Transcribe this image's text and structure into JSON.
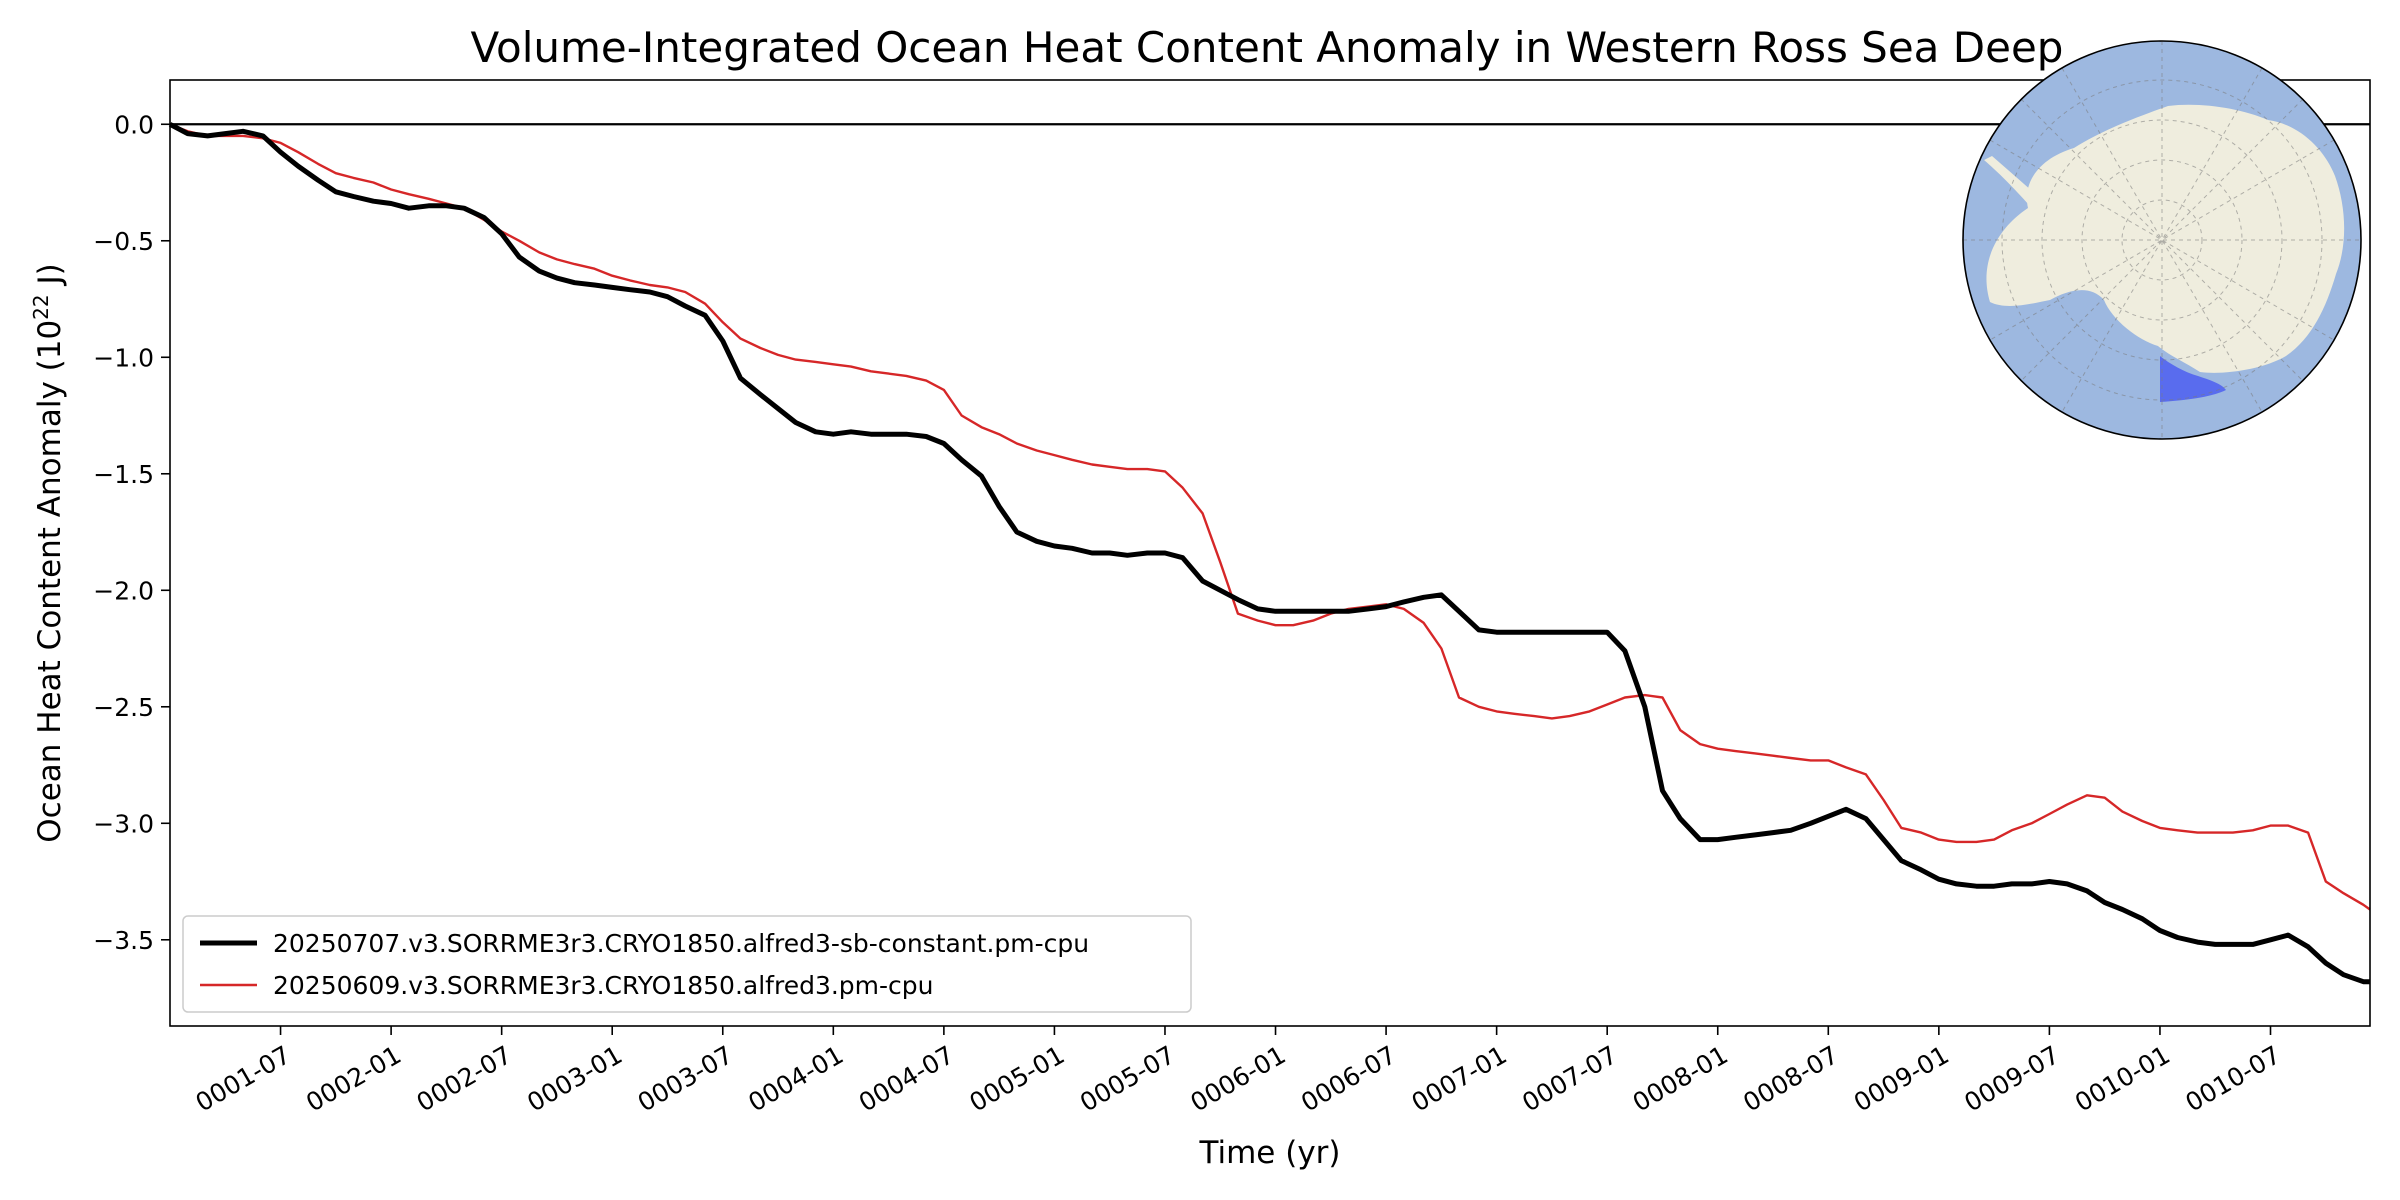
{
  "chart_data": {
    "type": "line",
    "title": "Volume-Integrated Ocean Heat Content Anomaly in Western Ross Sea Deep",
    "xlabel": "Time (yr)",
    "ylabel": "Ocean Heat Content Anomaly (10²² J)",
    "ylabel_main": "Ocean Heat Content Anomaly (10",
    "ylabel_exp": "22",
    "ylabel_tail": " J)",
    "x_unit": "year",
    "xlim": [
      1.0,
      10.95
    ],
    "ylim": [
      -3.87,
      0.19
    ],
    "x_ticks": [
      {
        "label": "0001-07",
        "value": 1.5
      },
      {
        "label": "0002-01",
        "value": 2.0
      },
      {
        "label": "0002-07",
        "value": 2.5
      },
      {
        "label": "0003-01",
        "value": 3.0
      },
      {
        "label": "0003-07",
        "value": 3.5
      },
      {
        "label": "0004-01",
        "value": 4.0
      },
      {
        "label": "0004-07",
        "value": 4.5
      },
      {
        "label": "0005-01",
        "value": 5.0
      },
      {
        "label": "0005-07",
        "value": 5.5
      },
      {
        "label": "0006-01",
        "value": 6.0
      },
      {
        "label": "0006-07",
        "value": 6.5
      },
      {
        "label": "0007-01",
        "value": 7.0
      },
      {
        "label": "0007-07",
        "value": 7.5
      },
      {
        "label": "0008-01",
        "value": 8.0
      },
      {
        "label": "0008-07",
        "value": 8.5
      },
      {
        "label": "0009-01",
        "value": 9.0
      },
      {
        "label": "0009-07",
        "value": 9.5
      },
      {
        "label": "0010-01",
        "value": 10.0
      },
      {
        "label": "0010-07",
        "value": 10.5
      }
    ],
    "y_ticks": [
      {
        "label": "0.0",
        "value": 0.0
      },
      {
        "label": "−0.5",
        "value": -0.5
      },
      {
        "label": "−1.0",
        "value": -1.0
      },
      {
        "label": "−1.5",
        "value": -1.5
      },
      {
        "label": "−2.0",
        "value": -2.0
      },
      {
        "label": "−2.5",
        "value": -2.5
      },
      {
        "label": "−3.0",
        "value": -3.0
      },
      {
        "label": "−3.5",
        "value": -3.5
      }
    ],
    "zero_line": 0.0,
    "grid": false,
    "legend_position": "lower-left",
    "series": [
      {
        "name": "20250707.v3.SORRME3r3.CRYO1850.alfred3-sb-constant.pm-cpu",
        "color": "#000000",
        "style": "thick",
        "points": [
          [
            1.0,
            0.0
          ],
          [
            1.08,
            -0.04
          ],
          [
            1.17,
            -0.05
          ],
          [
            1.25,
            -0.04
          ],
          [
            1.33,
            -0.03
          ],
          [
            1.42,
            -0.05
          ],
          [
            1.5,
            -0.12
          ],
          [
            1.58,
            -0.18
          ],
          [
            1.67,
            -0.24
          ],
          [
            1.75,
            -0.29
          ],
          [
            1.83,
            -0.31
          ],
          [
            1.92,
            -0.33
          ],
          [
            2.0,
            -0.34
          ],
          [
            2.08,
            -0.36
          ],
          [
            2.17,
            -0.35
          ],
          [
            2.25,
            -0.35
          ],
          [
            2.33,
            -0.36
          ],
          [
            2.42,
            -0.4
          ],
          [
            2.5,
            -0.47
          ],
          [
            2.58,
            -0.57
          ],
          [
            2.67,
            -0.63
          ],
          [
            2.75,
            -0.66
          ],
          [
            2.83,
            -0.68
          ],
          [
            2.92,
            -0.69
          ],
          [
            3.0,
            -0.7
          ],
          [
            3.08,
            -0.71
          ],
          [
            3.17,
            -0.72
          ],
          [
            3.25,
            -0.74
          ],
          [
            3.33,
            -0.78
          ],
          [
            3.42,
            -0.82
          ],
          [
            3.5,
            -0.93
          ],
          [
            3.58,
            -1.09
          ],
          [
            3.67,
            -1.16
          ],
          [
            3.75,
            -1.22
          ],
          [
            3.83,
            -1.28
          ],
          [
            3.92,
            -1.32
          ],
          [
            4.0,
            -1.33
          ],
          [
            4.08,
            -1.32
          ],
          [
            4.17,
            -1.33
          ],
          [
            4.25,
            -1.33
          ],
          [
            4.33,
            -1.33
          ],
          [
            4.42,
            -1.34
          ],
          [
            4.5,
            -1.37
          ],
          [
            4.58,
            -1.44
          ],
          [
            4.67,
            -1.51
          ],
          [
            4.75,
            -1.64
          ],
          [
            4.83,
            -1.75
          ],
          [
            4.92,
            -1.79
          ],
          [
            5.0,
            -1.81
          ],
          [
            5.08,
            -1.82
          ],
          [
            5.17,
            -1.84
          ],
          [
            5.25,
            -1.84
          ],
          [
            5.33,
            -1.85
          ],
          [
            5.42,
            -1.84
          ],
          [
            5.5,
            -1.84
          ],
          [
            5.58,
            -1.86
          ],
          [
            5.67,
            -1.96
          ],
          [
            5.75,
            -2.0
          ],
          [
            5.83,
            -2.04
          ],
          [
            5.92,
            -2.08
          ],
          [
            6.0,
            -2.09
          ],
          [
            6.08,
            -2.09
          ],
          [
            6.17,
            -2.09
          ],
          [
            6.25,
            -2.09
          ],
          [
            6.33,
            -2.09
          ],
          [
            6.42,
            -2.08
          ],
          [
            6.5,
            -2.07
          ],
          [
            6.58,
            -2.05
          ],
          [
            6.67,
            -2.03
          ],
          [
            6.75,
            -2.02
          ],
          [
            6.83,
            -2.09
          ],
          [
            6.92,
            -2.17
          ],
          [
            7.0,
            -2.18
          ],
          [
            7.08,
            -2.18
          ],
          [
            7.17,
            -2.18
          ],
          [
            7.25,
            -2.18
          ],
          [
            7.33,
            -2.18
          ],
          [
            7.42,
            -2.18
          ],
          [
            7.5,
            -2.18
          ],
          [
            7.58,
            -2.26
          ],
          [
            7.67,
            -2.5
          ],
          [
            7.75,
            -2.86
          ],
          [
            7.83,
            -2.98
          ],
          [
            7.92,
            -3.07
          ],
          [
            8.0,
            -3.07
          ],
          [
            8.08,
            -3.06
          ],
          [
            8.17,
            -3.05
          ],
          [
            8.25,
            -3.04
          ],
          [
            8.33,
            -3.03
          ],
          [
            8.42,
            -3.0
          ],
          [
            8.5,
            -2.97
          ],
          [
            8.58,
            -2.94
          ],
          [
            8.67,
            -2.98
          ],
          [
            8.75,
            -3.07
          ],
          [
            8.83,
            -3.16
          ],
          [
            8.92,
            -3.2
          ],
          [
            9.0,
            -3.24
          ],
          [
            9.08,
            -3.26
          ],
          [
            9.17,
            -3.27
          ],
          [
            9.25,
            -3.27
          ],
          [
            9.33,
            -3.26
          ],
          [
            9.42,
            -3.26
          ],
          [
            9.5,
            -3.25
          ],
          [
            9.58,
            -3.26
          ],
          [
            9.67,
            -3.29
          ],
          [
            9.75,
            -3.34
          ],
          [
            9.83,
            -3.37
          ],
          [
            9.92,
            -3.41
          ],
          [
            10.0,
            -3.46
          ],
          [
            10.08,
            -3.49
          ],
          [
            10.17,
            -3.51
          ],
          [
            10.25,
            -3.52
          ],
          [
            10.33,
            -3.52
          ],
          [
            10.42,
            -3.52
          ],
          [
            10.5,
            -3.5
          ],
          [
            10.58,
            -3.48
          ],
          [
            10.67,
            -3.53
          ],
          [
            10.75,
            -3.6
          ],
          [
            10.83,
            -3.65
          ],
          [
            10.92,
            -3.68
          ],
          [
            10.95,
            -3.68
          ]
        ]
      },
      {
        "name": "20250609.v3.SORRME3r3.CRYO1850.alfred3.pm-cpu",
        "color": "#d62728",
        "style": "thin",
        "points": [
          [
            1.0,
            0.0
          ],
          [
            1.08,
            -0.03
          ],
          [
            1.17,
            -0.05
          ],
          [
            1.25,
            -0.05
          ],
          [
            1.33,
            -0.05
          ],
          [
            1.42,
            -0.06
          ],
          [
            1.5,
            -0.08
          ],
          [
            1.58,
            -0.12
          ],
          [
            1.67,
            -0.17
          ],
          [
            1.75,
            -0.21
          ],
          [
            1.83,
            -0.23
          ],
          [
            1.92,
            -0.25
          ],
          [
            2.0,
            -0.28
          ],
          [
            2.08,
            -0.3
          ],
          [
            2.17,
            -0.32
          ],
          [
            2.25,
            -0.34
          ],
          [
            2.33,
            -0.36
          ],
          [
            2.42,
            -0.41
          ],
          [
            2.5,
            -0.46
          ],
          [
            2.58,
            -0.5
          ],
          [
            2.67,
            -0.55
          ],
          [
            2.75,
            -0.58
          ],
          [
            2.83,
            -0.6
          ],
          [
            2.92,
            -0.62
          ],
          [
            3.0,
            -0.65
          ],
          [
            3.08,
            -0.67
          ],
          [
            3.17,
            -0.69
          ],
          [
            3.25,
            -0.7
          ],
          [
            3.33,
            -0.72
          ],
          [
            3.42,
            -0.77
          ],
          [
            3.5,
            -0.85
          ],
          [
            3.58,
            -0.92
          ],
          [
            3.67,
            -0.96
          ],
          [
            3.75,
            -0.99
          ],
          [
            3.83,
            -1.01
          ],
          [
            3.92,
            -1.02
          ],
          [
            4.0,
            -1.03
          ],
          [
            4.08,
            -1.04
          ],
          [
            4.17,
            -1.06
          ],
          [
            4.25,
            -1.07
          ],
          [
            4.33,
            -1.08
          ],
          [
            4.42,
            -1.1
          ],
          [
            4.5,
            -1.14
          ],
          [
            4.58,
            -1.25
          ],
          [
            4.67,
            -1.3
          ],
          [
            4.75,
            -1.33
          ],
          [
            4.83,
            -1.37
          ],
          [
            4.92,
            -1.4
          ],
          [
            5.0,
            -1.42
          ],
          [
            5.08,
            -1.44
          ],
          [
            5.17,
            -1.46
          ],
          [
            5.25,
            -1.47
          ],
          [
            5.33,
            -1.48
          ],
          [
            5.42,
            -1.48
          ],
          [
            5.5,
            -1.49
          ],
          [
            5.58,
            -1.56
          ],
          [
            5.67,
            -1.67
          ],
          [
            5.75,
            -1.88
          ],
          [
            5.83,
            -2.1
          ],
          [
            5.92,
            -2.13
          ],
          [
            6.0,
            -2.15
          ],
          [
            6.08,
            -2.15
          ],
          [
            6.17,
            -2.13
          ],
          [
            6.25,
            -2.1
          ],
          [
            6.33,
            -2.08
          ],
          [
            6.42,
            -2.07
          ],
          [
            6.5,
            -2.06
          ],
          [
            6.58,
            -2.08
          ],
          [
            6.67,
            -2.14
          ],
          [
            6.75,
            -2.25
          ],
          [
            6.83,
            -2.46
          ],
          [
            6.92,
            -2.5
          ],
          [
            7.0,
            -2.52
          ],
          [
            7.08,
            -2.53
          ],
          [
            7.17,
            -2.54
          ],
          [
            7.25,
            -2.55
          ],
          [
            7.33,
            -2.54
          ],
          [
            7.42,
            -2.52
          ],
          [
            7.5,
            -2.49
          ],
          [
            7.58,
            -2.46
          ],
          [
            7.67,
            -2.45
          ],
          [
            7.75,
            -2.46
          ],
          [
            7.83,
            -2.6
          ],
          [
            7.92,
            -2.66
          ],
          [
            8.0,
            -2.68
          ],
          [
            8.08,
            -2.69
          ],
          [
            8.17,
            -2.7
          ],
          [
            8.25,
            -2.71
          ],
          [
            8.33,
            -2.72
          ],
          [
            8.42,
            -2.73
          ],
          [
            8.5,
            -2.73
          ],
          [
            8.58,
            -2.76
          ],
          [
            8.67,
            -2.79
          ],
          [
            8.75,
            -2.9
          ],
          [
            8.83,
            -3.02
          ],
          [
            8.92,
            -3.04
          ],
          [
            9.0,
            -3.07
          ],
          [
            9.08,
            -3.08
          ],
          [
            9.17,
            -3.08
          ],
          [
            9.25,
            -3.07
          ],
          [
            9.33,
            -3.03
          ],
          [
            9.42,
            -3.0
          ],
          [
            9.5,
            -2.96
          ],
          [
            9.58,
            -2.92
          ],
          [
            9.67,
            -2.88
          ],
          [
            9.75,
            -2.89
          ],
          [
            9.83,
            -2.95
          ],
          [
            9.92,
            -2.99
          ],
          [
            10.0,
            -3.02
          ],
          [
            10.08,
            -3.03
          ],
          [
            10.17,
            -3.04
          ],
          [
            10.25,
            -3.04
          ],
          [
            10.33,
            -3.04
          ],
          [
            10.42,
            -3.03
          ],
          [
            10.5,
            -3.01
          ],
          [
            10.58,
            -3.01
          ],
          [
            10.67,
            -3.04
          ],
          [
            10.75,
            -3.25
          ],
          [
            10.83,
            -3.3
          ],
          [
            10.92,
            -3.35
          ],
          [
            10.95,
            -3.37
          ]
        ]
      }
    ]
  },
  "inset_map": {
    "ocean_color": "#9db8e0",
    "land_color": "#efedde",
    "region_color": "#4a5cf0",
    "graticule": true,
    "projection": "south-polar"
  }
}
